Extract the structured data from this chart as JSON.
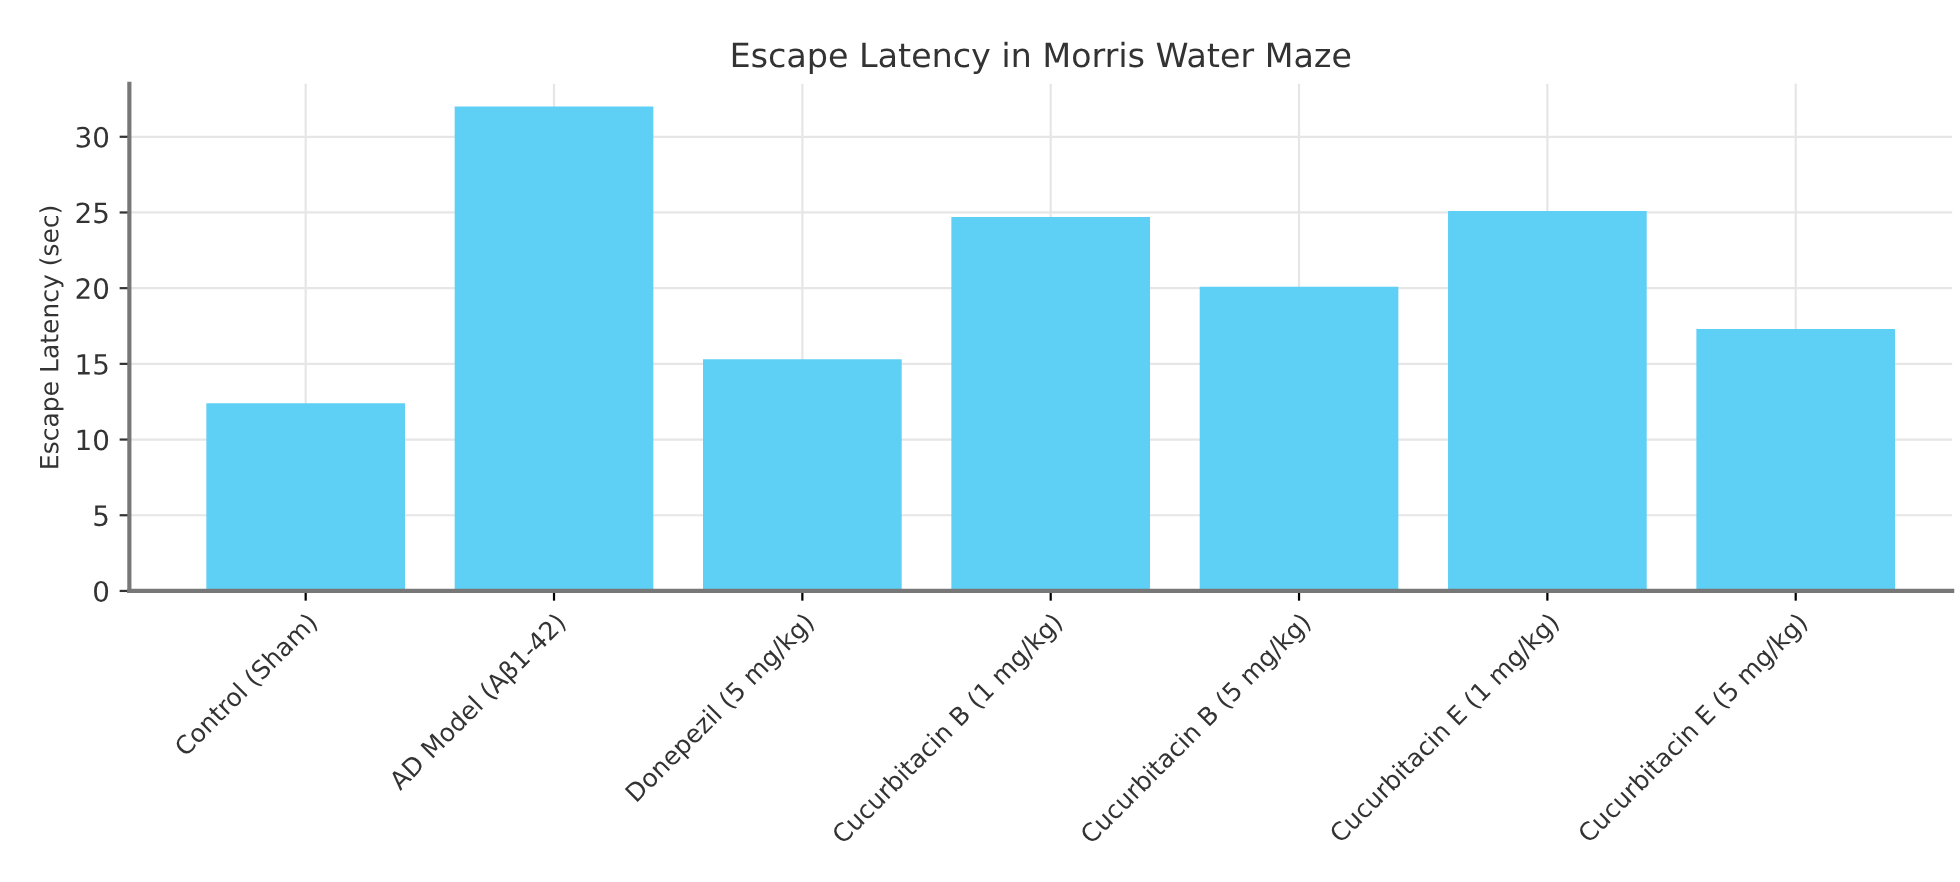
{
  "chart_data": {
    "type": "bar",
    "title": "Escape Latency in Morris Water Maze",
    "ylabel": "Escape Latency (sec)",
    "categories": [
      "Control (Sham)",
      "AD Model (Aβ1-42)",
      "Donepezil (5 mg/kg)",
      "Cucurbitacin B (1 mg/kg)",
      "Cucurbitacin B (5 mg/kg)",
      "Cucurbitacin E (1 mg/kg)",
      "Cucurbitacin E (5 mg/kg)"
    ],
    "values": [
      12.4,
      32,
      15.3,
      24.7,
      20.1,
      25.1,
      17.3
    ],
    "color": "#5ecff5",
    "ylim": [
      0,
      33.5
    ],
    "yticks": [
      0,
      5,
      10,
      15,
      20,
      25,
      30
    ],
    "grid": true
  }
}
